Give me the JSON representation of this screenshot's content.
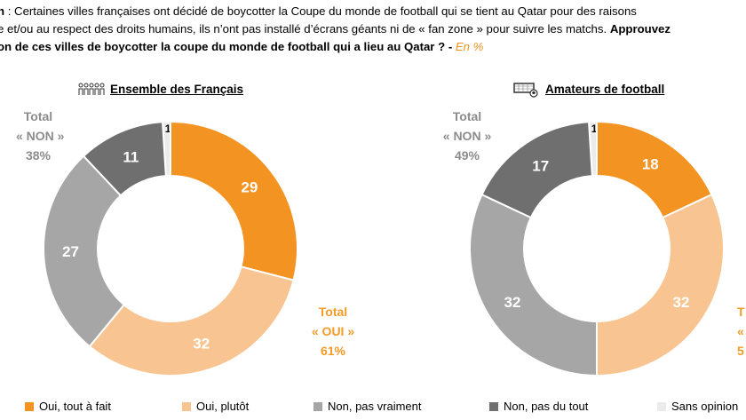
{
  "header": {
    "line1": "n : Certaines villes françaises ont décidé de boycotter la Coupe du monde de football qui se tient au Qatar pour des raisons",
    "line2_text": "e et/ou au respect des droits humains, ils n’ont pas installé d’écrans géants ni de « fan zone » pour suivre les matchs.",
    "line2_bold": "Approuvez",
    "line3_bold": "on de ces villes de boycotter la coupe du monde de football qui a lieu au Qatar ? -",
    "line3_unit": "En %"
  },
  "colors": {
    "oui_tout_a_fait": "#f39322",
    "oui_plutot": "#f8c592",
    "non_pas_vraiment": "#a6a6a6",
    "non_pas_du_tout": "#6f6f6f",
    "sans_opinion": "#ebebeb"
  },
  "chart_data": [
    {
      "type": "pie",
      "variant": "donut",
      "title": "Ensemble des Français",
      "icon": "people-icon",
      "categories": [
        "Oui, tout à fait",
        "Oui, plutôt",
        "Non, pas vraiment",
        "Non, pas du tout",
        "Sans opinion"
      ],
      "values": [
        29,
        32,
        27,
        11,
        1
      ],
      "value_labels": [
        "29",
        "32",
        "27",
        "11",
        "1"
      ],
      "totals": {
        "non": {
          "line1": "Total",
          "line2": "« NON »",
          "line3": "38%"
        },
        "oui": {
          "line1": "Total",
          "line2": "«  OUI »",
          "line3": "61%"
        }
      }
    },
    {
      "type": "pie",
      "variant": "donut",
      "title": "Amateurs de football",
      "icon": "football-goal-icon",
      "categories": [
        "Oui, tout à fait",
        "Oui, plutôt",
        "Non, pas vraiment",
        "Non, pas du tout",
        "Sans opinion"
      ],
      "values": [
        18,
        32,
        32,
        17,
        1
      ],
      "value_labels": [
        "18",
        "32",
        "32",
        "17",
        "1"
      ],
      "totals": {
        "non": {
          "line1": "Total",
          "line2": "« NON »",
          "line3": "49%"
        },
        "oui": {
          "line1": "T",
          "line2": "«",
          "line3": "5"
        }
      }
    }
  ],
  "legend": [
    {
      "label": "Oui, tout à fait",
      "color": "#f39322"
    },
    {
      "label": "Oui, plutôt",
      "color": "#f8c592"
    },
    {
      "label": "Non, pas vraiment",
      "color": "#a6a6a6"
    },
    {
      "label": "Non, pas du tout",
      "color": "#6f6f6f"
    },
    {
      "label": "Sans opinion",
      "color": "#ebebeb"
    }
  ]
}
